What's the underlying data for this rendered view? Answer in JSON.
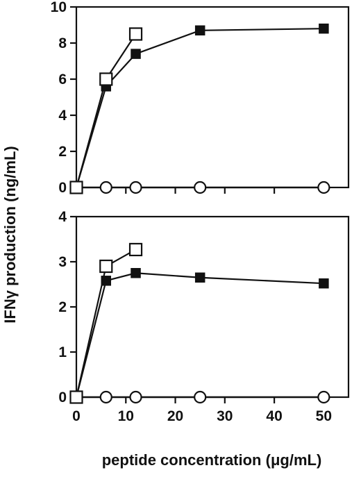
{
  "figure": {
    "ylabel": "IFNγ production (ng/mL)",
    "xlabel": "peptide concentration (μg/mL)"
  },
  "chart_data": [
    {
      "type": "line",
      "panel": "top",
      "xlabel": "",
      "ylabel": "",
      "xlim": [
        0,
        55
      ],
      "ylim": [
        0,
        10
      ],
      "x_ticks": [
        0,
        10,
        20,
        30,
        40,
        50
      ],
      "y_ticks": [
        0,
        2,
        4,
        6,
        8,
        10
      ],
      "grid": false,
      "series": [
        {
          "marker": "filled-square",
          "x": [
            0,
            6,
            12,
            25,
            50
          ],
          "y": [
            0,
            5.6,
            7.4,
            8.7,
            8.8
          ]
        },
        {
          "marker": "open-square",
          "x": [
            0,
            6,
            12
          ],
          "y": [
            0,
            6.0,
            8.5
          ]
        },
        {
          "marker": "filled-circle",
          "x": [
            0,
            6,
            12,
            25,
            50
          ],
          "y": [
            0,
            0,
            0,
            0,
            0
          ]
        },
        {
          "marker": "open-circle",
          "x": [
            0,
            6,
            12,
            25,
            50
          ],
          "y": [
            0,
            0,
            0,
            0,
            0
          ]
        }
      ]
    },
    {
      "type": "line",
      "panel": "bottom",
      "xlabel": "",
      "ylabel": "",
      "xlim": [
        0,
        55
      ],
      "ylim": [
        0,
        4
      ],
      "x_ticks": [
        0,
        10,
        20,
        30,
        40,
        50
      ],
      "y_ticks": [
        0,
        1,
        2,
        3,
        4
      ],
      "grid": false,
      "series": [
        {
          "marker": "filled-square",
          "x": [
            0,
            6,
            12,
            25,
            50
          ],
          "y": [
            0,
            2.58,
            2.75,
            2.65,
            2.52
          ]
        },
        {
          "marker": "open-square",
          "x": [
            0,
            6,
            12
          ],
          "y": [
            0,
            2.9,
            3.27
          ]
        },
        {
          "marker": "filled-circle",
          "x": [
            0,
            6,
            12,
            25,
            50
          ],
          "y": [
            0,
            0,
            0,
            0,
            0
          ]
        },
        {
          "marker": "open-circle",
          "x": [
            0,
            6,
            12,
            25,
            50
          ],
          "y": [
            0,
            0,
            0,
            0,
            0
          ]
        }
      ]
    }
  ]
}
